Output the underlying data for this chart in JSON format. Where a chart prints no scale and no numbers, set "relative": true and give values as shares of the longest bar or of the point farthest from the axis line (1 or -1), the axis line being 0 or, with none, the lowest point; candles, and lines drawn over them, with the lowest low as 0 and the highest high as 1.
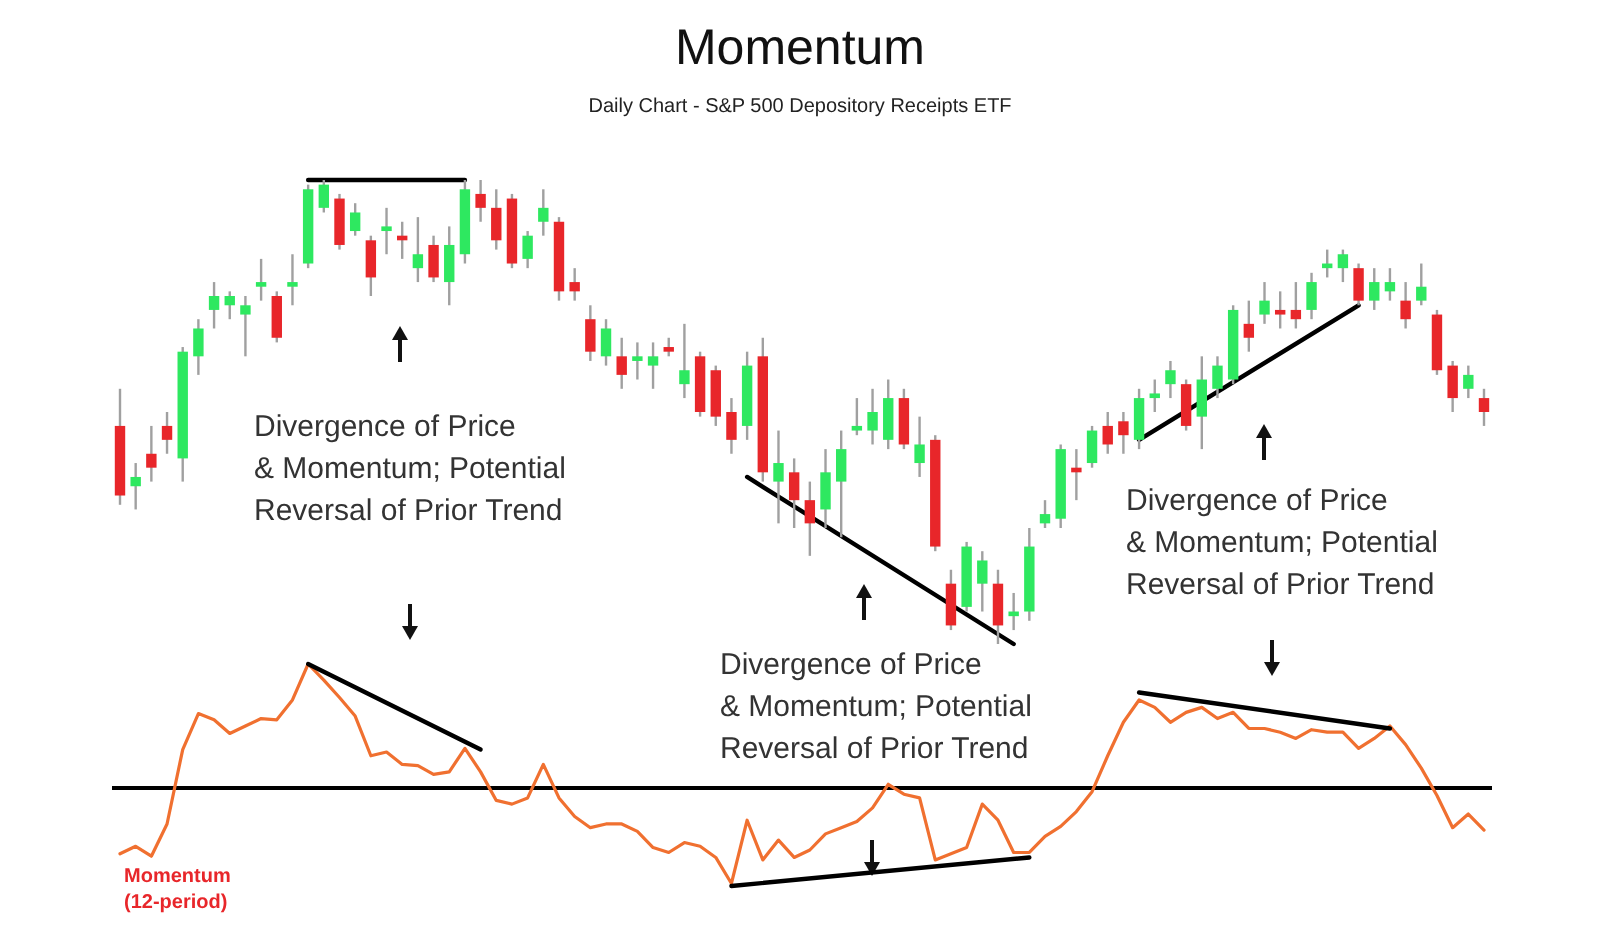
{
  "chart_data": [
    {
      "type": "candlestick",
      "title": "Momentum",
      "subtitle": "Daily Chart - S&P 500 Depository Receipts ETF",
      "relative": true,
      "categories": [
        null,
        null,
        null,
        null,
        null,
        null,
        null,
        null,
        null,
        null,
        null,
        null,
        null,
        null,
        null,
        null,
        null,
        null,
        null,
        null,
        null,
        null,
        null,
        null,
        null,
        null,
        null,
        null,
        null,
        null,
        null,
        null,
        null,
        null,
        null,
        null,
        null,
        null,
        null,
        null,
        null,
        null,
        null,
        null,
        null,
        null,
        null,
        null,
        null,
        null,
        null,
        null,
        null,
        null,
        null,
        null,
        null,
        null,
        null,
        null,
        null,
        null,
        null,
        null,
        null,
        null,
        null,
        null,
        null,
        null,
        null,
        null,
        null,
        null,
        null,
        null,
        null,
        null,
        null,
        null,
        null,
        null,
        null,
        null,
        null,
        null,
        null,
        null
      ],
      "ohlc": [
        [
          0.47,
          0.55,
          0.3,
          0.32
        ],
        [
          0.34,
          0.39,
          0.29,
          0.36
        ],
        [
          0.41,
          0.47,
          0.35,
          0.38
        ],
        [
          0.47,
          0.5,
          0.41,
          0.44
        ],
        [
          0.4,
          0.64,
          0.35,
          0.63
        ],
        [
          0.62,
          0.7,
          0.58,
          0.68
        ],
        [
          0.72,
          0.78,
          0.68,
          0.75
        ],
        [
          0.73,
          0.76,
          0.7,
          0.75
        ],
        [
          0.71,
          0.75,
          0.62,
          0.73
        ],
        [
          0.77,
          0.83,
          0.74,
          0.78
        ],
        [
          0.75,
          0.76,
          0.65,
          0.66
        ],
        [
          0.77,
          0.84,
          0.73,
          0.78
        ],
        [
          0.82,
          0.99,
          0.81,
          0.98
        ],
        [
          0.94,
          1,
          0.93,
          0.99
        ],
        [
          0.96,
          0.97,
          0.85,
          0.86
        ],
        [
          0.89,
          0.95,
          0.88,
          0.93
        ],
        [
          0.87,
          0.88,
          0.75,
          0.79
        ],
        [
          0.89,
          0.94,
          0.84,
          0.9
        ],
        [
          0.88,
          0.91,
          0.83,
          0.87
        ],
        [
          0.81,
          0.92,
          0.78,
          0.84
        ],
        [
          0.86,
          0.88,
          0.78,
          0.79
        ],
        [
          0.78,
          0.9,
          0.73,
          0.86
        ],
        [
          0.84,
          1,
          0.82,
          0.98
        ],
        [
          0.97,
          1,
          0.91,
          0.94
        ],
        [
          0.94,
          0.98,
          0.85,
          0.87
        ],
        [
          0.96,
          0.97,
          0.81,
          0.82
        ],
        [
          0.83,
          0.89,
          0.81,
          0.88
        ],
        [
          0.91,
          0.98,
          0.88,
          0.94
        ],
        [
          0.91,
          0.92,
          0.74,
          0.76
        ],
        [
          0.78,
          0.81,
          0.74,
          0.76
        ],
        [
          0.7,
          0.73,
          0.61,
          0.63
        ],
        [
          0.62,
          0.7,
          0.6,
          0.68
        ],
        [
          0.62,
          0.66,
          0.55,
          0.58
        ],
        [
          0.61,
          0.65,
          0.57,
          0.62
        ],
        [
          0.6,
          0.65,
          0.55,
          0.62
        ],
        [
          0.64,
          0.66,
          0.62,
          0.63
        ],
        [
          0.56,
          0.69,
          0.53,
          0.59
        ],
        [
          0.62,
          0.63,
          0.49,
          0.5
        ],
        [
          0.59,
          0.6,
          0.47,
          0.49
        ],
        [
          0.5,
          0.53,
          0.41,
          0.44
        ],
        [
          0.47,
          0.63,
          0.44,
          0.6
        ],
        [
          0.62,
          0.66,
          0.35,
          0.37
        ],
        [
          0.35,
          0.46,
          0.26,
          0.39
        ],
        [
          0.37,
          0.4,
          0.25,
          0.31
        ],
        [
          0.31,
          0.35,
          0.19,
          0.26
        ],
        [
          0.29,
          0.42,
          0.25,
          0.37
        ],
        [
          0.35,
          0.46,
          0.23,
          0.42
        ],
        [
          0.46,
          0.53,
          0.45,
          0.47
        ],
        [
          0.46,
          0.55,
          0.43,
          0.5
        ],
        [
          0.44,
          0.57,
          0.42,
          0.53
        ],
        [
          0.53,
          0.55,
          0.42,
          0.43
        ],
        [
          0.39,
          0.49,
          0.36,
          0.43
        ],
        [
          0.44,
          0.45,
          0.2,
          0.21
        ],
        [
          0.13,
          0.16,
          0.03,
          0.04
        ],
        [
          0.08,
          0.22,
          0.07,
          0.21
        ],
        [
          0.13,
          0.2,
          0.07,
          0.18
        ],
        [
          0.13,
          0.16,
          0,
          0.04
        ],
        [
          0.06,
          0.11,
          0.03,
          0.07
        ],
        [
          0.07,
          0.25,
          0.05,
          0.21
        ],
        [
          0.26,
          0.31,
          0.25,
          0.28
        ],
        [
          0.27,
          0.43,
          0.25,
          0.42
        ],
        [
          0.38,
          0.42,
          0.31,
          0.37
        ],
        [
          0.39,
          0.47,
          0.38,
          0.46
        ],
        [
          0.47,
          0.5,
          0.41,
          0.43
        ],
        [
          0.48,
          0.5,
          0.41,
          0.45
        ],
        [
          0.44,
          0.55,
          0.42,
          0.53
        ],
        [
          0.53,
          0.57,
          0.5,
          0.54
        ],
        [
          0.56,
          0.61,
          0.53,
          0.59
        ],
        [
          0.56,
          0.57,
          0.46,
          0.47
        ],
        [
          0.49,
          0.62,
          0.42,
          0.57
        ],
        [
          0.55,
          0.62,
          0.53,
          0.6
        ],
        [
          0.57,
          0.73,
          0.56,
          0.72
        ],
        [
          0.69,
          0.74,
          0.63,
          0.66
        ],
        [
          0.71,
          0.78,
          0.69,
          0.74
        ],
        [
          0.72,
          0.76,
          0.68,
          0.71
        ],
        [
          0.72,
          0.78,
          0.68,
          0.7
        ],
        [
          0.72,
          0.8,
          0.7,
          0.78
        ],
        [
          0.81,
          0.85,
          0.79,
          0.82
        ],
        [
          0.81,
          0.85,
          0.78,
          0.84
        ],
        [
          0.81,
          0.82,
          0.73,
          0.74
        ],
        [
          0.74,
          0.81,
          0.72,
          0.78
        ],
        [
          0.76,
          0.81,
          0.74,
          0.78
        ],
        [
          0.74,
          0.78,
          0.68,
          0.7
        ],
        [
          0.74,
          0.82,
          0.73,
          0.77
        ],
        [
          0.71,
          0.72,
          0.58,
          0.59
        ],
        [
          0.6,
          0.61,
          0.5,
          0.53
        ],
        [
          0.55,
          0.6,
          0.53,
          0.58
        ],
        [
          0.53,
          0.55,
          0.47,
          0.5
        ]
      ],
      "series": [
        {
          "type": "line",
          "color": "#000000",
          "values": [
            null,
            null,
            null,
            null,
            null,
            null,
            null,
            null,
            null,
            null,
            null,
            null,
            1,
            null,
            null,
            null,
            null,
            null,
            null,
            null,
            null,
            null,
            1,
            null,
            null,
            null,
            null,
            null,
            null,
            null,
            null,
            null,
            null,
            null,
            null,
            null,
            null,
            null,
            null,
            null,
            null,
            null,
            null,
            null,
            null,
            null,
            null,
            null,
            null,
            null,
            null,
            null,
            null,
            null,
            null,
            null,
            null,
            null,
            null,
            null,
            null,
            null,
            null,
            null,
            null,
            null,
            null,
            null,
            null,
            null,
            null,
            null,
            null,
            null,
            null,
            null,
            null,
            null,
            null,
            null,
            null,
            null,
            null,
            null,
            null,
            null,
            null,
            null
          ]
        },
        {
          "type": "line",
          "color": "#000000",
          "values": [
            null,
            null,
            null,
            null,
            null,
            null,
            null,
            null,
            null,
            null,
            null,
            null,
            null,
            null,
            null,
            null,
            null,
            null,
            null,
            null,
            null,
            null,
            null,
            null,
            null,
            null,
            null,
            null,
            null,
            null,
            null,
            null,
            null,
            null,
            null,
            null,
            null,
            null,
            null,
            null,
            0.36,
            null,
            null,
            null,
            null,
            null,
            null,
            null,
            null,
            null,
            null,
            null,
            null,
            null,
            null,
            null,
            null,
            0,
            null,
            null,
            null,
            null,
            null,
            null,
            null,
            null,
            null,
            null,
            null,
            null,
            null,
            null,
            null,
            null,
            null,
            null,
            null,
            null,
            null,
            null,
            null,
            null,
            null,
            null,
            null,
            null,
            null,
            null
          ]
        },
        {
          "type": "line",
          "color": "#000000",
          "values": [
            null,
            null,
            null,
            null,
            null,
            null,
            null,
            null,
            null,
            null,
            null,
            null,
            null,
            null,
            null,
            null,
            null,
            null,
            null,
            null,
            null,
            null,
            null,
            null,
            null,
            null,
            null,
            null,
            null,
            null,
            null,
            null,
            null,
            null,
            null,
            null,
            null,
            null,
            null,
            null,
            null,
            null,
            null,
            null,
            null,
            null,
            null,
            null,
            null,
            null,
            null,
            null,
            null,
            null,
            null,
            null,
            null,
            null,
            null,
            null,
            null,
            null,
            null,
            null,
            null,
            0.44,
            null,
            null,
            null,
            null,
            null,
            null,
            null,
            null,
            null,
            null,
            null,
            null,
            null,
            0.73,
            null,
            null,
            null,
            null,
            null,
            null,
            null,
            null
          ]
        }
      ],
      "annotations": [
        "Divergence of Price & Momentum; Potential Reversal of Prior Trend",
        "Divergence of Price & Momentum; Potential Reversal of Prior Trend",
        "Divergence of Price & Momentum; Potential Reversal of Prior Trend"
      ]
    },
    {
      "type": "line",
      "annotations": [
        "Momentum (12-period)"
      ],
      "relative": true,
      "categories": [
        null,
        null,
        null,
        null,
        null,
        null,
        null,
        null,
        null,
        null,
        null,
        null,
        null,
        null,
        null,
        null,
        null,
        null,
        null,
        null,
        null,
        null,
        null,
        null,
        null,
        null,
        null,
        null,
        null,
        null,
        null,
        null,
        null,
        null,
        null,
        null,
        null,
        null,
        null,
        null,
        null,
        null,
        null,
        null,
        null,
        null,
        null,
        null,
        null,
        null,
        null,
        null,
        null,
        null,
        null,
        null,
        null,
        null,
        null,
        null,
        null,
        null,
        null,
        null,
        null,
        null,
        null,
        null,
        null,
        null,
        null,
        null,
        null,
        null,
        null,
        null,
        null,
        null,
        null,
        null,
        null,
        null,
        null,
        null,
        null,
        null,
        null,
        null
      ],
      "ref_lines": [
        {
          "axis": "y",
          "value": 0,
          "color": "#000000"
        }
      ],
      "series": [
        {
          "color": "#f07030",
          "values": [
            -0.53,
            -0.47,
            -0.55,
            -0.29,
            0.31,
            0.6,
            0.55,
            0.44,
            0.5,
            0.56,
            0.55,
            0.71,
            1,
            0.87,
            0.73,
            0.58,
            0.26,
            0.29,
            0.19,
            0.18,
            0.11,
            0.13,
            0.32,
            0.13,
            -0.1,
            -0.13,
            -0.08,
            0.19,
            -0.08,
            -0.23,
            -0.32,
            -0.29,
            -0.29,
            -0.35,
            -0.48,
            -0.52,
            -0.44,
            -0.47,
            -0.56,
            -0.77,
            -0.26,
            -0.58,
            -0.42,
            -0.56,
            -0.5,
            -0.37,
            -0.32,
            -0.27,
            -0.16,
            0.03,
            -0.05,
            -0.08,
            -0.58,
            -0.53,
            -0.48,
            -0.13,
            -0.26,
            -0.52,
            -0.52,
            -0.39,
            -0.31,
            -0.19,
            -0.03,
            0.26,
            0.53,
            0.71,
            0.65,
            0.53,
            0.61,
            0.65,
            0.56,
            0.61,
            0.48,
            0.48,
            0.45,
            0.4,
            0.47,
            0.45,
            0.45,
            0.32,
            0.4,
            0.5,
            0.35,
            0.16,
            -0.06,
            -0.32,
            -0.21,
            -0.34
          ]
        },
        {
          "color": "#000000",
          "values": [
            null,
            null,
            null,
            null,
            null,
            null,
            null,
            null,
            null,
            null,
            null,
            null,
            1,
            null,
            null,
            null,
            null,
            null,
            null,
            null,
            null,
            null,
            null,
            0.31,
            null,
            null,
            null,
            null,
            null,
            null,
            null,
            null,
            null,
            null,
            null,
            null,
            null,
            null,
            null,
            null,
            null,
            null,
            null,
            null,
            null,
            null,
            null,
            null,
            null,
            null,
            null,
            null,
            null,
            null,
            null,
            null,
            null,
            null,
            null,
            null,
            null,
            null,
            null,
            null,
            null,
            null,
            null,
            null,
            null,
            null,
            null,
            null,
            null,
            null,
            null,
            null,
            null,
            null,
            null,
            null,
            null,
            null,
            null,
            null,
            null,
            null,
            null,
            null
          ]
        },
        {
          "color": "#000000",
          "values": [
            null,
            null,
            null,
            null,
            null,
            null,
            null,
            null,
            null,
            null,
            null,
            null,
            null,
            null,
            null,
            null,
            null,
            null,
            null,
            null,
            null,
            null,
            null,
            null,
            null,
            null,
            null,
            null,
            null,
            null,
            null,
            null,
            null,
            null,
            null,
            null,
            null,
            null,
            null,
            -0.79,
            null,
            null,
            null,
            null,
            null,
            null,
            null,
            null,
            null,
            null,
            null,
            null,
            null,
            null,
            null,
            null,
            null,
            null,
            -0.56,
            null,
            null,
            null,
            null,
            null,
            null,
            null,
            null,
            null,
            null,
            null,
            null,
            null,
            null,
            null,
            null,
            null,
            null,
            null,
            null,
            null,
            null,
            null,
            null,
            null,
            null,
            null,
            null,
            null
          ]
        },
        {
          "color": "#000000",
          "values": [
            null,
            null,
            null,
            null,
            null,
            null,
            null,
            null,
            null,
            null,
            null,
            null,
            null,
            null,
            null,
            null,
            null,
            null,
            null,
            null,
            null,
            null,
            null,
            null,
            null,
            null,
            null,
            null,
            null,
            null,
            null,
            null,
            null,
            null,
            null,
            null,
            null,
            null,
            null,
            null,
            null,
            null,
            null,
            null,
            null,
            null,
            null,
            null,
            null,
            null,
            null,
            null,
            null,
            null,
            null,
            null,
            null,
            null,
            null,
            null,
            null,
            null,
            null,
            null,
            null,
            0.77,
            null,
            null,
            null,
            null,
            null,
            null,
            null,
            null,
            null,
            null,
            null,
            null,
            null,
            null,
            null,
            0.48,
            null,
            null,
            null,
            null,
            null,
            null
          ]
        }
      ]
    }
  ]
}
